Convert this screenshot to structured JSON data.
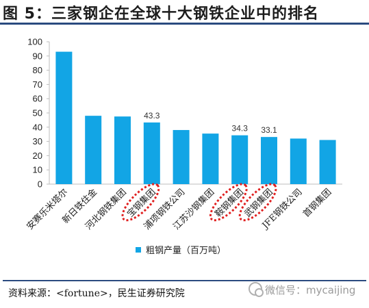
{
  "title": "图 5：三家钢企在全球十大钢铁企业中的排名",
  "source": "资料来源：<fortune>，民生证券研究院",
  "watermark": "微信号：mycaijing",
  "watermark_icon": "wechat-icon",
  "colors": {
    "bar": "#12a5e5",
    "highlight_ring": "#e02020",
    "rule": "#2a4a7f"
  },
  "chart_data": {
    "type": "bar",
    "categories": [
      "安赛乐米塔尔",
      "新日铁住金",
      "河北钢铁集团",
      "宝钢集团",
      "浦项钢铁公司",
      "江苏沙钢集团",
      "鞍钢集团",
      "武钢集团",
      "JFE钢铁公司",
      "首钢集团"
    ],
    "series": [
      {
        "name": "粗钢产量（百万吨）",
        "values": [
          93,
          48,
          47.5,
          43.3,
          38,
          35.5,
          34.3,
          33.1,
          32,
          31
        ]
      }
    ],
    "data_labels": [
      null,
      null,
      null,
      "43.3",
      null,
      null,
      "34.3",
      "33.1",
      null,
      null
    ],
    "highlighted": [
      "宝钢集团",
      "鞍钢集团",
      "武钢集团"
    ],
    "ylim": [
      0,
      100
    ],
    "yticks": [
      "0",
      "10",
      "20",
      "30",
      "40",
      "50",
      "60",
      "70",
      "80",
      "90",
      "100"
    ],
    "legend_position": "bottom",
    "grid": false
  }
}
